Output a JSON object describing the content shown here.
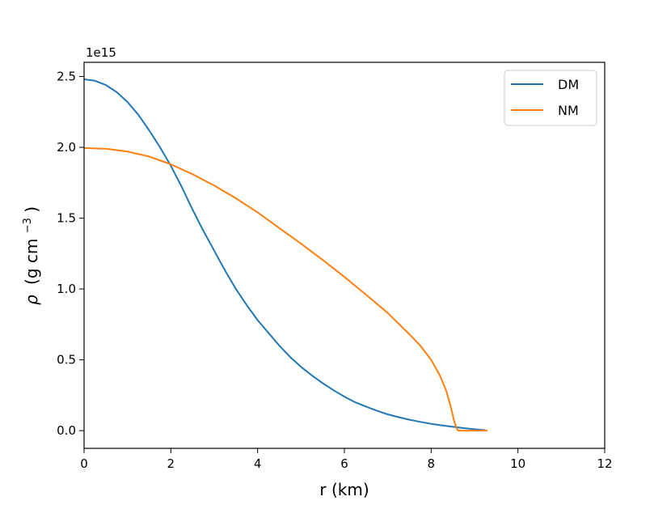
{
  "chart_data": {
    "type": "line",
    "xlabel": "r (km)",
    "ylabel_symbol": "ρ",
    "ylabel_units": "(g cm",
    "ylabel_exponent": "−3",
    "ylabel_close": ")",
    "offset_text": "1e15",
    "xlim": [
      0,
      12
    ],
    "ylim": [
      -0.125,
      2.6
    ],
    "xticks": [
      0,
      2,
      4,
      6,
      8,
      10,
      12
    ],
    "xtick_labels": [
      "0",
      "2",
      "4",
      "6",
      "8",
      "10",
      "12"
    ],
    "yticks": [
      0.0,
      0.5,
      1.0,
      1.5,
      2.0,
      2.5
    ],
    "ytick_labels": [
      "0.0",
      "0.5",
      "1.0",
      "1.5",
      "2.0",
      "2.5"
    ],
    "grid": false,
    "legend_position": "upper right",
    "series": [
      {
        "name": "DM",
        "color": "#1f77b4",
        "x": [
          0,
          0.25,
          0.5,
          0.75,
          1.0,
          1.25,
          1.5,
          1.75,
          2.0,
          2.25,
          2.5,
          2.75,
          3.0,
          3.25,
          3.5,
          3.75,
          4.0,
          4.25,
          4.5,
          4.75,
          5.0,
          5.25,
          5.5,
          5.75,
          6.0,
          6.25,
          6.5,
          6.75,
          7.0,
          7.25,
          7.5,
          7.75,
          8.0,
          8.25,
          8.5,
          8.75,
          9.0,
          9.25
        ],
        "y": [
          2.48,
          2.47,
          2.44,
          2.39,
          2.32,
          2.23,
          2.12,
          2.0,
          1.87,
          1.72,
          1.56,
          1.41,
          1.27,
          1.13,
          1.0,
          0.885,
          0.78,
          0.69,
          0.6,
          0.52,
          0.45,
          0.39,
          0.335,
          0.285,
          0.24,
          0.2,
          0.17,
          0.14,
          0.115,
          0.095,
          0.077,
          0.062,
          0.048,
          0.037,
          0.027,
          0.018,
          0.01,
          0.003
        ]
      },
      {
        "name": "NM",
        "color": "#ff7f0e",
        "x": [
          0,
          0.5,
          1.0,
          1.5,
          2.0,
          2.5,
          3.0,
          3.5,
          4.0,
          4.5,
          5.0,
          5.5,
          6.0,
          6.5,
          7.0,
          7.5,
          7.75,
          8.0,
          8.2,
          8.35,
          8.45,
          8.52,
          8.57,
          8.62,
          9.0,
          9.3
        ],
        "y": [
          1.995,
          1.99,
          1.97,
          1.935,
          1.88,
          1.81,
          1.73,
          1.64,
          1.54,
          1.43,
          1.32,
          1.205,
          1.085,
          0.96,
          0.83,
          0.68,
          0.6,
          0.5,
          0.39,
          0.28,
          0.17,
          0.08,
          0.03,
          0.0,
          0.0,
          0.0
        ]
      }
    ]
  }
}
